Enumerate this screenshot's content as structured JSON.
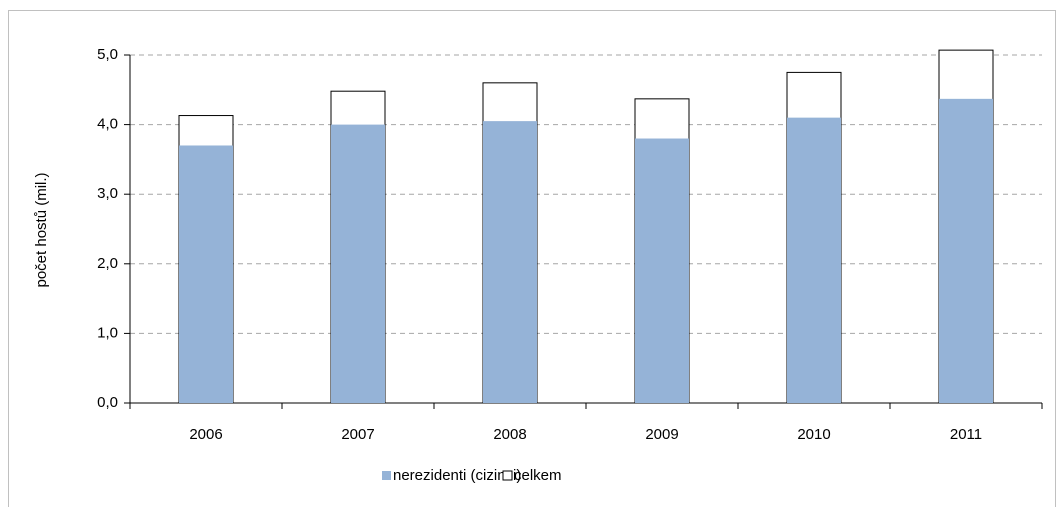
{
  "chart_data": {
    "type": "bar",
    "y_label": "počet hostů (mil.)",
    "categories": [
      "2006",
      "2007",
      "2008",
      "2009",
      "2010",
      "2011"
    ],
    "series": [
      {
        "name": "nerezidenti (cizinci)",
        "color": "#95b3d7",
        "values": [
          3.7,
          4.0,
          4.05,
          3.8,
          4.1,
          4.37
        ]
      },
      {
        "name": "celkem",
        "color": "#ffffff",
        "values": [
          4.13,
          4.48,
          4.6,
          4.37,
          4.75,
          5.07
        ]
      }
    ],
    "ylim": [
      0,
      5
    ],
    "yticks": [
      {
        "value": 0,
        "label": "0,0"
      },
      {
        "value": 1,
        "label": "1,0"
      },
      {
        "value": 2,
        "label": "2,0"
      },
      {
        "value": 3,
        "label": "3,0"
      },
      {
        "value": 4,
        "label": "4,0"
      },
      {
        "value": 5,
        "label": "5,0"
      }
    ],
    "grid": true
  }
}
